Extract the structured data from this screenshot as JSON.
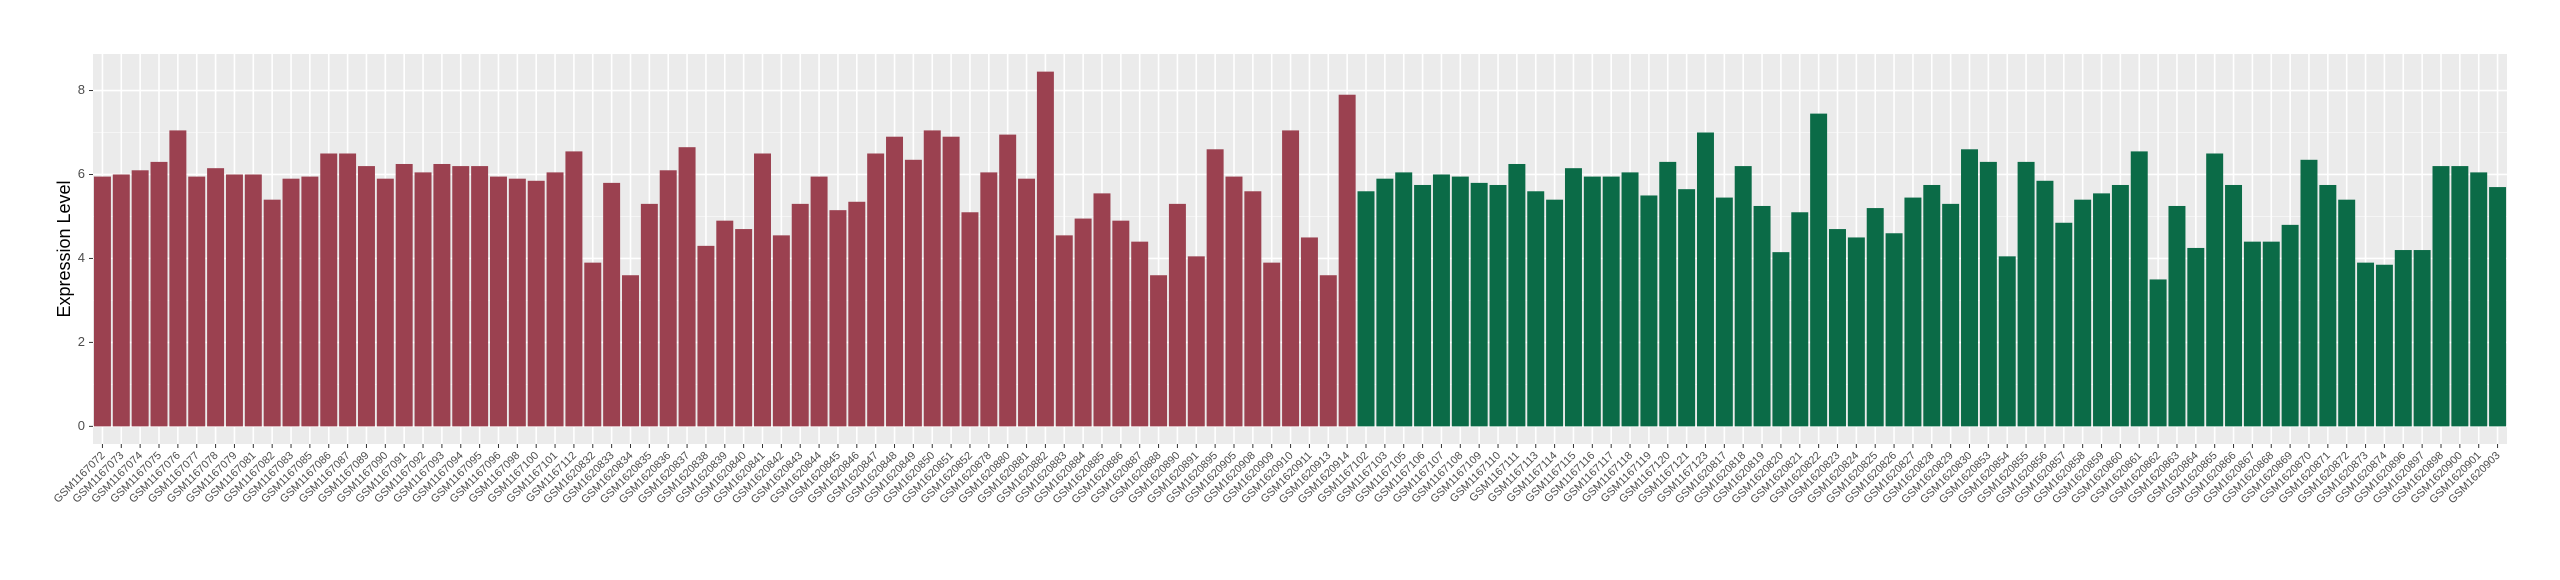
{
  "chart_data": {
    "type": "bar",
    "y_label": "Expression Level",
    "categories": [
      "GSM1167072",
      "GSM1167073",
      "GSM1167074",
      "GSM1167075",
      "GSM1167076",
      "GSM1167077",
      "GSM1167078",
      "GSM1167079",
      "GSM1167081",
      "GSM1167082",
      "GSM1167083",
      "GSM1167085",
      "GSM1167086",
      "GSM1167087",
      "GSM1167089",
      "GSM1167090",
      "GSM1167091",
      "GSM1167092",
      "GSM1167093",
      "GSM1167094",
      "GSM1167095",
      "GSM1167096",
      "GSM1167098",
      "GSM1167100",
      "GSM1167101",
      "GSM1167112",
      "GSM1620832",
      "GSM1620833",
      "GSM1620834",
      "GSM1620835",
      "GSM1620836",
      "GSM1620837",
      "GSM1620838",
      "GSM1620839",
      "GSM1620840",
      "GSM1620841",
      "GSM1620842",
      "GSM1620843",
      "GSM1620844",
      "GSM1620845",
      "GSM1620846",
      "GSM1620847",
      "GSM1620848",
      "GSM1620849",
      "GSM1620850",
      "GSM1620851",
      "GSM1620852",
      "GSM1620878",
      "GSM1620880",
      "GSM1620881",
      "GSM1620882",
      "GSM1620883",
      "GSM1620884",
      "GSM1620885",
      "GSM1620886",
      "GSM1620887",
      "GSM1620888",
      "GSM1620890",
      "GSM1620891",
      "GSM1620895",
      "GSM1620905",
      "GSM1620908",
      "GSM1620909",
      "GSM1620910",
      "GSM1620911",
      "GSM1620913",
      "GSM1620914",
      "GSM1167102",
      "GSM1167103",
      "GSM1167105",
      "GSM1167106",
      "GSM1167107",
      "GSM1167108",
      "GSM1167109",
      "GSM1167110",
      "GSM1167111",
      "GSM1167113",
      "GSM1167114",
      "GSM1167115",
      "GSM1167116",
      "GSM1167117",
      "GSM1167118",
      "GSM1167119",
      "GSM1167120",
      "GSM1167121",
      "GSM1167123",
      "GSM1620817",
      "GSM1620818",
      "GSM1620819",
      "GSM1620820",
      "GSM1620821",
      "GSM1620822",
      "GSM1620823",
      "GSM1620824",
      "GSM1620825",
      "GSM1620826",
      "GSM1620827",
      "GSM1620828",
      "GSM1620829",
      "GSM1620830",
      "GSM1620853",
      "GSM1620854",
      "GSM1620855",
      "GSM1620856",
      "GSM1620857",
      "GSM1620858",
      "GSM1620859",
      "GSM1620860",
      "GSM1620861",
      "GSM1620862",
      "GSM1620863",
      "GSM1620864",
      "GSM1620865",
      "GSM1620866",
      "GSM1620867",
      "GSM1620868",
      "GSM1620869",
      "GSM1620870",
      "GSM1620871",
      "GSM1620872",
      "GSM1620873",
      "GSM1620874",
      "GSM1620896",
      "GSM1620897",
      "GSM1620898",
      "GSM1620900",
      "GSM1620901",
      "GSM1620903"
    ],
    "values": [
      5.95,
      6.0,
      6.1,
      6.3,
      7.05,
      5.95,
      6.15,
      6.0,
      6.0,
      5.4,
      5.9,
      5.95,
      6.5,
      6.5,
      6.2,
      5.9,
      6.25,
      6.05,
      6.25,
      6.2,
      6.2,
      5.95,
      5.9,
      5.85,
      6.05,
      6.55,
      3.9,
      5.8,
      3.6,
      5.3,
      6.1,
      6.65,
      4.3,
      4.9,
      4.7,
      6.5,
      4.55,
      5.3,
      5.95,
      5.15,
      5.35,
      6.5,
      6.9,
      6.35,
      7.05,
      6.9,
      5.1,
      6.05,
      6.95,
      5.9,
      8.45,
      4.55,
      4.95,
      5.55,
      4.9,
      4.4,
      3.6,
      5.3,
      4.05,
      6.6,
      5.95,
      5.6,
      3.9,
      7.05,
      4.5,
      3.6,
      7.9,
      5.6,
      5.9,
      6.05,
      5.75,
      6.0,
      5.95,
      5.8,
      5.75,
      6.25,
      5.6,
      5.4,
      6.15,
      5.95,
      5.95,
      6.05,
      5.5,
      6.3,
      5.65,
      7.0,
      5.45,
      6.2,
      5.25,
      4.15,
      5.1,
      7.45,
      4.7,
      4.5,
      5.2,
      4.6,
      5.45,
      5.75,
      5.3,
      6.6,
      6.3,
      4.05,
      6.3,
      5.85,
      4.85,
      5.4,
      5.55,
      5.75,
      6.55,
      3.5,
      5.25,
      4.25,
      6.5,
      5.75,
      4.4,
      4.4,
      4.8,
      6.35,
      5.75,
      5.4,
      3.9,
      3.85,
      4.2,
      4.2,
      6.2,
      6.2,
      6.05,
      5.7
    ],
    "bar_colors": [
      "#9b4150",
      "#9b4150",
      "#9b4150",
      "#9b4150",
      "#9b4150",
      "#9b4150",
      "#9b4150",
      "#9b4150",
      "#9b4150",
      "#9b4150",
      "#9b4150",
      "#9b4150",
      "#9b4150",
      "#9b4150",
      "#9b4150",
      "#9b4150",
      "#9b4150",
      "#9b4150",
      "#9b4150",
      "#9b4150",
      "#9b4150",
      "#9b4150",
      "#9b4150",
      "#9b4150",
      "#9b4150",
      "#9b4150",
      "#9b4150",
      "#9b4150",
      "#9b4150",
      "#9b4150",
      "#9b4150",
      "#9b4150",
      "#9b4150",
      "#9b4150",
      "#9b4150",
      "#9b4150",
      "#9b4150",
      "#9b4150",
      "#9b4150",
      "#9b4150",
      "#9b4150",
      "#9b4150",
      "#9b4150",
      "#9b4150",
      "#9b4150",
      "#9b4150",
      "#9b4150",
      "#9b4150",
      "#9b4150",
      "#9b4150",
      "#9b4150",
      "#9b4150",
      "#9b4150",
      "#9b4150",
      "#9b4150",
      "#9b4150",
      "#9b4150",
      "#9b4150",
      "#9b4150",
      "#9b4150",
      "#9b4150",
      "#9b4150",
      "#9b4150",
      "#9b4150",
      "#9b4150",
      "#9b4150",
      "#9b4150",
      "#0b6b47",
      "#0b6b47",
      "#0b6b47",
      "#0b6b47",
      "#0b6b47",
      "#0b6b47",
      "#0b6b47",
      "#0b6b47",
      "#0b6b47",
      "#0b6b47",
      "#0b6b47",
      "#0b6b47",
      "#0b6b47",
      "#0b6b47",
      "#0b6b47",
      "#0b6b47",
      "#0b6b47",
      "#0b6b47",
      "#0b6b47",
      "#0b6b47",
      "#0b6b47",
      "#0b6b47",
      "#0b6b47",
      "#0b6b47",
      "#0b6b47",
      "#0b6b47",
      "#0b6b47",
      "#0b6b47",
      "#0b6b47",
      "#0b6b47",
      "#0b6b47",
      "#0b6b47",
      "#0b6b47",
      "#0b6b47",
      "#0b6b47",
      "#0b6b47",
      "#0b6b47",
      "#0b6b47",
      "#0b6b47",
      "#0b6b47",
      "#0b6b47",
      "#0b6b47",
      "#0b6b47",
      "#0b6b47",
      "#0b6b47",
      "#0b6b47",
      "#0b6b47",
      "#0b6b47",
      "#0b6b47",
      "#0b6b47",
      "#0b6b47",
      "#0b6b47",
      "#0b6b47",
      "#0b6b47",
      "#0b6b47",
      "#0b6b47",
      "#0b6b47",
      "#0b6b47",
      "#0b6b47",
      "#0b6b47",
      "#0b6b47"
    ],
    "ylim": [
      -0.42,
      8.87
    ],
    "yticks": [
      0,
      2,
      4,
      6,
      8
    ],
    "grid": true
  }
}
